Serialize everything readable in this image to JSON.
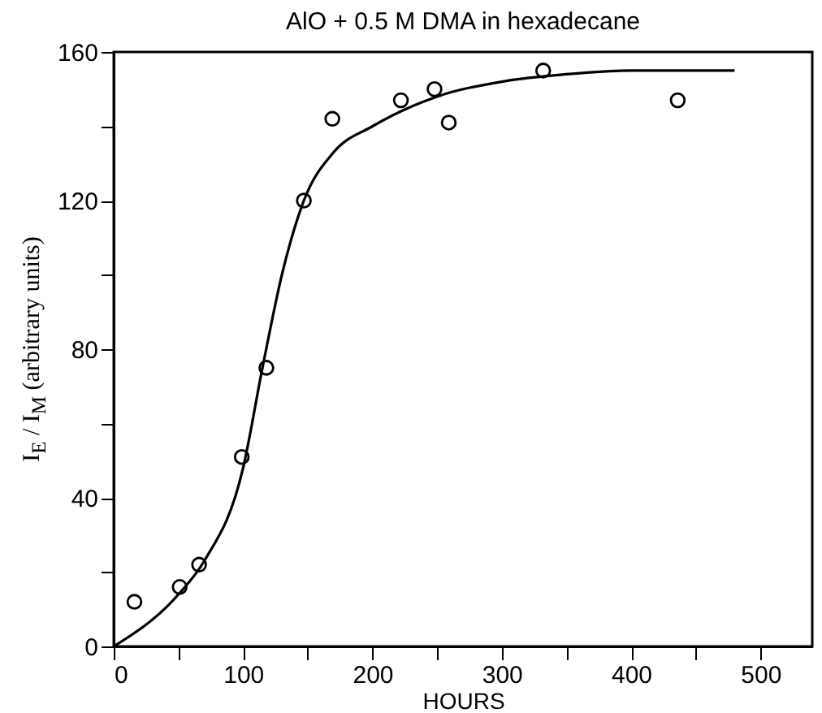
{
  "chart_data": {
    "type": "scatter",
    "title": "AlO + 0.5 M  DMA   in  hexadecane",
    "xlabel": "HOURS",
    "ylabel": "I$_{E}$ / I$_{M}$  (arbitrary units)",
    "xlim": [
      0,
      540
    ],
    "ylim": [
      0,
      160
    ],
    "xticks": [
      0,
      {
        "value": 50,
        "label": null
      },
      100,
      {
        "value": 150,
        "label": null
      },
      200,
      {
        "value": 250,
        "label": null
      },
      300,
      {
        "value": 350,
        "label": null
      },
      400,
      {
        "value": 450,
        "label": null
      },
      500
    ],
    "yticks": [
      0,
      {
        "value": 20,
        "label": null
      },
      40,
      {
        "value": 60,
        "label": null
      },
      80,
      {
        "value": 100,
        "label": null
      },
      120,
      {
        "value": 140,
        "label": null
      },
      160
    ],
    "grid": false,
    "series": [
      {
        "color": "#000000",
        "marker": "circle",
        "x": [
          16,
          51,
          66,
          99,
          118,
          147,
          169,
          222,
          248,
          259,
          332,
          436
        ],
        "values": [
          12,
          16,
          22,
          51,
          75,
          120,
          142,
          147,
          150,
          141,
          155,
          147
        ]
      },
      {
        "type": "line",
        "color": "#000000",
        "line_style": "solid",
        "marker": "none",
        "x": [
          0,
          50,
          70,
          100,
          115,
          130,
          147,
          170,
          200,
          250,
          300,
          350,
          400,
          480
        ],
        "values": [
          0,
          14,
          23,
          48,
          75,
          100,
          120,
          133,
          140,
          148,
          152,
          154,
          155,
          155
        ]
      }
    ]
  }
}
